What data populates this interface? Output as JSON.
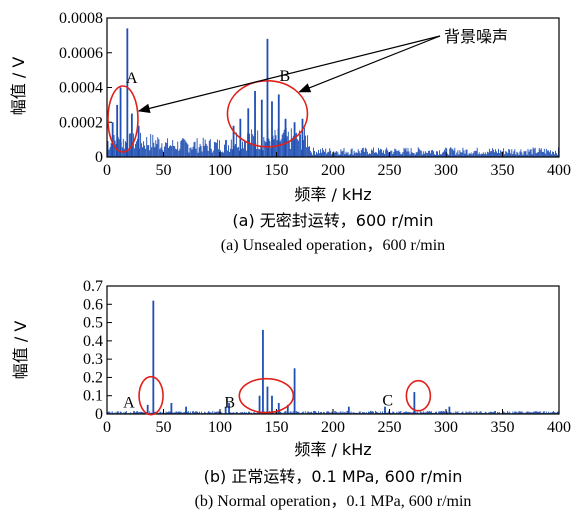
{
  "chart_data": [
    {
      "type": "line",
      "xlabel": "频率 / kHz",
      "ylabel": "幅值 / V",
      "xlim": [
        0,
        400
      ],
      "ylim": [
        0,
        0.0008
      ],
      "xticks": [
        "0",
        "50",
        "100",
        "150",
        "200",
        "250",
        "300",
        "350",
        "400"
      ],
      "yticks": [
        "0",
        "0.0002",
        "0.0004",
        "0.0006",
        "0.0008"
      ],
      "caption_cn": "(a) 无密封运转，600 r/min",
      "caption_en": "(a) Unsealed operation，600 r/min",
      "color": "#1f4fb3",
      "peaks": [
        {
          "x": 5,
          "y": 0.0002
        },
        {
          "x": 9,
          "y": 0.0003
        },
        {
          "x": 12,
          "y": 0.0004
        },
        {
          "x": 18,
          "y": 0.00074
        },
        {
          "x": 22,
          "y": 0.00025
        },
        {
          "x": 28,
          "y": 0.00018
        },
        {
          "x": 112,
          "y": 0.00018
        },
        {
          "x": 118,
          "y": 0.00022
        },
        {
          "x": 125,
          "y": 0.00028
        },
        {
          "x": 131,
          "y": 0.00038
        },
        {
          "x": 137,
          "y": 0.00033
        },
        {
          "x": 142,
          "y": 0.00068
        },
        {
          "x": 146,
          "y": 0.00032
        },
        {
          "x": 152,
          "y": 0.00036
        },
        {
          "x": 158,
          "y": 0.00022
        },
        {
          "x": 166,
          "y": 0.0002
        },
        {
          "x": 173,
          "y": 0.00022
        }
      ],
      "background_noise": [
        {
          "x0": 0,
          "x1": 50,
          "level": 0.0001
        },
        {
          "x0": 50,
          "x1": 110,
          "level": 8e-05
        },
        {
          "x0": 110,
          "x1": 180,
          "level": 0.00012
        },
        {
          "x0": 180,
          "x1": 400,
          "level": 4e-05
        }
      ],
      "annotations": [
        {
          "label": "A",
          "x": 15,
          "y": 0.00019
        },
        {
          "label": "B",
          "x": 142,
          "y": 0.00022
        }
      ],
      "callout": "背景噪声"
    },
    {
      "type": "line",
      "xlabel": "频率 / kHz",
      "ylabel": "幅值 / V",
      "xlim": [
        0,
        400
      ],
      "ylim": [
        0,
        0.7
      ],
      "xticks": [
        "0",
        "50",
        "100",
        "150",
        "200",
        "250",
        "300",
        "350",
        "400"
      ],
      "yticks": [
        "0",
        "0.1",
        "0.2",
        "0.3",
        "0.4",
        "0.5",
        "0.6",
        "0.7"
      ],
      "caption_cn": "(b) 正常运转，0.1 MPa, 600 r/min",
      "caption_en": "(b) Normal operation，0.1 MPa, 600 r/min",
      "color": "#1f4fb3",
      "peaks": [
        {
          "x": 36,
          "y": 0.05
        },
        {
          "x": 41,
          "y": 0.62
        },
        {
          "x": 57,
          "y": 0.06
        },
        {
          "x": 70,
          "y": 0.04
        },
        {
          "x": 105,
          "y": 0.04
        },
        {
          "x": 108,
          "y": 0.06
        },
        {
          "x": 135,
          "y": 0.1
        },
        {
          "x": 138,
          "y": 0.46
        },
        {
          "x": 142,
          "y": 0.15
        },
        {
          "x": 146,
          "y": 0.1
        },
        {
          "x": 152,
          "y": 0.06
        },
        {
          "x": 160,
          "y": 0.05
        },
        {
          "x": 166,
          "y": 0.25
        },
        {
          "x": 214,
          "y": 0.04
        },
        {
          "x": 246,
          "y": 0.04
        },
        {
          "x": 272,
          "y": 0.12
        },
        {
          "x": 303,
          "y": 0.04
        }
      ],
      "background_noise": [
        {
          "x0": 0,
          "x1": 400,
          "level": 0.012
        }
      ],
      "annotations": [
        {
          "label": "A",
          "x": 39,
          "y": 0.1
        },
        {
          "label": "B",
          "x": 141,
          "y": 0.1
        },
        {
          "label": "C",
          "x": 272,
          "y": 0.1
        }
      ]
    }
  ]
}
